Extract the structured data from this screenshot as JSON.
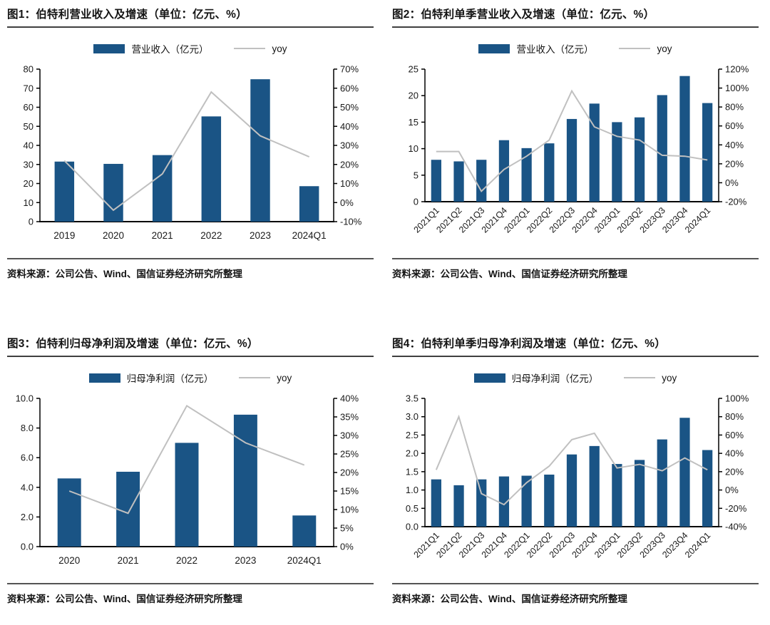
{
  "colors": {
    "bar": "#1a5485",
    "line": "#c0c0c0",
    "axis": "#000000",
    "text": "#1a1a1a"
  },
  "chart_data": [
    {
      "type": "bar+line",
      "title": "图1：伯特利营业收入及增速（单位：亿元、%）",
      "source": "资料来源：公司公告、Wind、国信证券经济研究所整理",
      "categories": [
        "2019",
        "2020",
        "2021",
        "2022",
        "2023",
        "2024Q1"
      ],
      "series": [
        {
          "name": "营业收入（亿元）",
          "type": "bar",
          "axis": "left",
          "values": [
            31.5,
            30.3,
            34.9,
            55.2,
            74.7,
            18.6
          ]
        },
        {
          "name": "yoy",
          "type": "line",
          "axis": "right",
          "values": [
            22,
            -4,
            15,
            58,
            35,
            24
          ]
        }
      ],
      "left_axis": {
        "min": 0,
        "max": 80,
        "step": 10,
        "decimals": 0,
        "suffix": ""
      },
      "right_axis": {
        "min": -10,
        "max": 70,
        "step": 10,
        "decimals": 0,
        "suffix": "%"
      },
      "x_labels_rotated": false,
      "grid": false,
      "legend_position": "top"
    },
    {
      "type": "bar+line",
      "title": "图2：伯特利单季营业收入及增速（单位：亿元、%）",
      "source": "资料来源：公司公告、Wind、国信证券经济研究所整理",
      "categories": [
        "2021Q1",
        "2021Q2",
        "2021Q3",
        "2021Q4",
        "2022Q1",
        "2022Q2",
        "2022Q3",
        "2022Q4",
        "2023Q1",
        "2023Q2",
        "2023Q3",
        "2023Q4",
        "2024Q1"
      ],
      "series": [
        {
          "name": "营业收入（亿元）",
          "type": "bar",
          "axis": "left",
          "values": [
            7.9,
            7.6,
            7.9,
            11.6,
            10.1,
            11.0,
            15.6,
            18.5,
            15.0,
            15.9,
            20.1,
            23.7,
            18.6
          ]
        },
        {
          "name": "yoy",
          "type": "line",
          "axis": "right",
          "values": [
            33,
            33,
            -9,
            14,
            28,
            45,
            97,
            59,
            49,
            45,
            29,
            28,
            24
          ]
        }
      ],
      "left_axis": {
        "min": 0,
        "max": 25,
        "step": 5,
        "decimals": 0,
        "suffix": ""
      },
      "right_axis": {
        "min": -20,
        "max": 120,
        "step": 20,
        "decimals": 0,
        "suffix": "%"
      },
      "x_labels_rotated": true,
      "grid": false,
      "legend_position": "top"
    },
    {
      "type": "bar+line",
      "title": "图3：伯特利归母净利润及增速（单位：亿元、%）",
      "source": "资料来源：公司公告、Wind、国信证券经济研究所整理",
      "categories": [
        "2020",
        "2021",
        "2022",
        "2023",
        "2024Q1"
      ],
      "series": [
        {
          "name": "归母净利润（亿元）",
          "type": "bar",
          "axis": "left",
          "values": [
            4.6,
            5.05,
            7.0,
            8.9,
            2.1
          ]
        },
        {
          "name": "yoy",
          "type": "line",
          "axis": "right",
          "values": [
            15,
            9,
            38,
            28,
            22
          ]
        }
      ],
      "left_axis": {
        "min": 0,
        "max": 10,
        "step": 2,
        "decimals": 1,
        "suffix": ""
      },
      "right_axis": {
        "min": 0,
        "max": 40,
        "step": 5,
        "decimals": 0,
        "suffix": "%"
      },
      "x_labels_rotated": false,
      "grid": false,
      "legend_position": "top"
    },
    {
      "type": "bar+line",
      "title": "图4：伯特利单季归母净利润及增速（单位：亿元、%）",
      "source": "资料来源：公司公告、Wind、国信证券经济研究所整理",
      "categories": [
        "2021Q1",
        "2021Q2",
        "2021Q3",
        "2021Q4",
        "2022Q1",
        "2022Q2",
        "2022Q3",
        "2022Q4",
        "2023Q1",
        "2023Q2",
        "2023Q3",
        "2023Q4",
        "2024Q1"
      ],
      "series": [
        {
          "name": "归母净利润（亿元）",
          "type": "bar",
          "axis": "left",
          "values": [
            1.29,
            1.13,
            1.29,
            1.37,
            1.39,
            1.42,
            1.97,
            2.2,
            1.71,
            1.82,
            2.38,
            2.97,
            2.09
          ]
        },
        {
          "name": "yoy",
          "type": "line",
          "axis": "right",
          "values": [
            22,
            80,
            -4,
            -16,
            8,
            26,
            55,
            62,
            24,
            28,
            21,
            35,
            22
          ]
        }
      ],
      "left_axis": {
        "min": 0,
        "max": 3.5,
        "step": 0.5,
        "decimals": 1,
        "suffix": ""
      },
      "right_axis": {
        "min": -40,
        "max": 100,
        "step": 20,
        "decimals": 0,
        "suffix": "%"
      },
      "x_labels_rotated": true,
      "grid": false,
      "legend_position": "top"
    }
  ]
}
